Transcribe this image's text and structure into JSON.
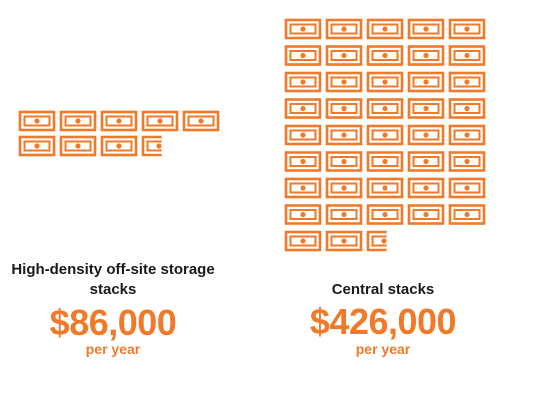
{
  "colors": {
    "accent": "#f07a2a",
    "text": "#1a1a1a",
    "background": "#ffffff"
  },
  "icon": "banknote-icon",
  "chart_data": {
    "type": "pictograph",
    "unit_icon": "banknote-icon",
    "series": [
      {
        "label": "High-density off-site storage stacks",
        "value_text": "$86,000",
        "unit_text": "per year",
        "value": 86000,
        "icon_count": 9
      },
      {
        "label": "Central stacks",
        "value_text": "$426,000",
        "unit_text": "per year",
        "value": 426000,
        "icon_count": 43
      }
    ]
  }
}
